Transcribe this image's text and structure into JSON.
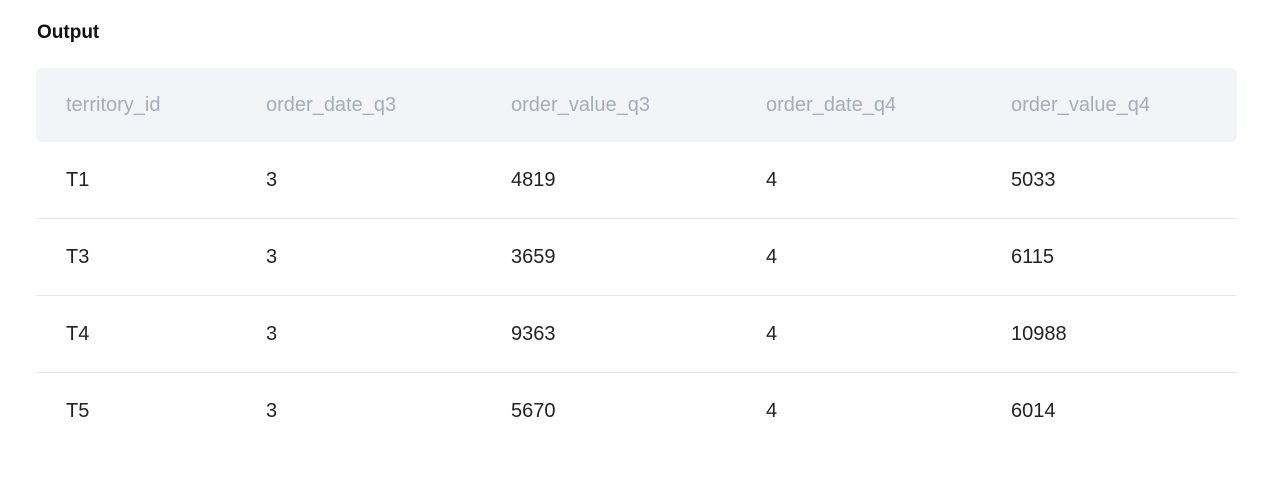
{
  "title": "Output",
  "table": {
    "columns": [
      "territory_id",
      "order_date_q3",
      "order_value_q3",
      "order_date_q4",
      "order_value_q4"
    ],
    "rows": [
      [
        "T1",
        "3",
        "4819",
        "4",
        "5033"
      ],
      [
        "T3",
        "3",
        "3659",
        "4",
        "6115"
      ],
      [
        "T4",
        "3",
        "9363",
        "4",
        "10988"
      ],
      [
        "T5",
        "3",
        "5670",
        "4",
        "6014"
      ]
    ]
  }
}
